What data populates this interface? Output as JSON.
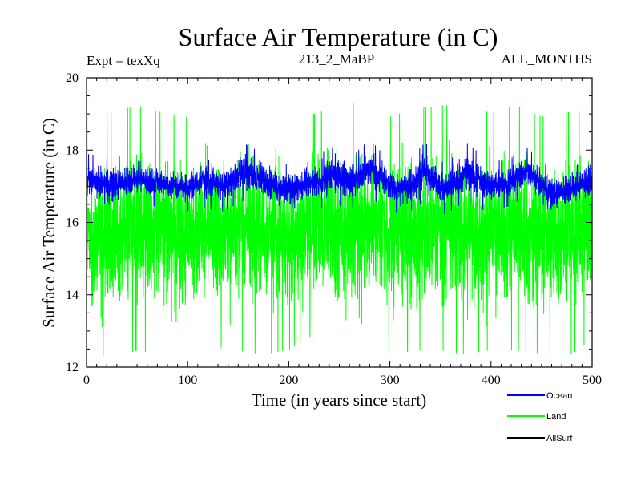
{
  "chart_data": {
    "type": "line",
    "title": "Surface Air Temperature (in C)",
    "subtitle_left": "Expt = texXq",
    "subtitle_center": "213_2_MaBP",
    "subtitle_right": "ALL_MONTHS",
    "xlabel": "Time (in years since start)",
    "ylabel": "Surface Air Temperature (in C)",
    "xlim": [
      0,
      500
    ],
    "ylim": [
      12,
      20
    ],
    "xticks": [
      0,
      100,
      200,
      300,
      400,
      500
    ],
    "yticks": [
      12,
      14,
      16,
      18,
      20
    ],
    "x_tick_labels": [
      "0",
      "100",
      "200",
      "300",
      "400",
      "500"
    ],
    "y_tick_labels": [
      "12",
      "14",
      "16",
      "18",
      "20"
    ],
    "grid": false,
    "legend_position": "bottom-right, below plot",
    "legend": [
      "Ocean",
      "Land",
      "AllSurf"
    ],
    "series": [
      {
        "name": "Land",
        "color": "#00ff00",
        "description": "monthly series, mean about 15.2, seasonal-scale spread roughly 12.3 to 19.4",
        "envelope_x": [
          0,
          25,
          50,
          75,
          100,
          125,
          150,
          175,
          200,
          225,
          250,
          275,
          300,
          325,
          350,
          375,
          400,
          425,
          450,
          475,
          500
        ],
        "envelope_low": [
          12.8,
          12.7,
          12.9,
          12.8,
          12.9,
          13.0,
          12.9,
          12.8,
          12.9,
          13.3,
          13.0,
          12.9,
          12.8,
          12.9,
          12.9,
          12.8,
          12.9,
          12.9,
          12.8,
          12.7,
          13.2
        ],
        "envelope_high": [
          18.5,
          18.6,
          18.8,
          18.6,
          18.5,
          18.6,
          18.9,
          18.8,
          18.5,
          18.6,
          18.8,
          18.9,
          18.5,
          18.7,
          18.8,
          18.8,
          18.6,
          18.8,
          18.5,
          18.6,
          18.7
        ],
        "mean": 15.2
      },
      {
        "name": "Ocean",
        "color": "#0000ff",
        "description": "monthly series with multi-decadal oscillation around 17.2",
        "envelope_x": [
          0,
          25,
          50,
          75,
          100,
          115,
          135,
          155,
          175,
          200,
          220,
          245,
          265,
          280,
          300,
          315,
          335,
          355,
          375,
          395,
          415,
          435,
          460,
          480,
          500
        ],
        "envelope_low": [
          16.5,
          16.4,
          16.6,
          16.5,
          16.4,
          16.5,
          16.4,
          16.7,
          16.5,
          16.3,
          16.4,
          16.6,
          16.5,
          16.8,
          16.4,
          16.3,
          16.7,
          16.3,
          16.7,
          16.4,
          16.5,
          16.8,
          16.2,
          16.3,
          16.5
        ],
        "envelope_high": [
          17.8,
          17.7,
          17.8,
          17.7,
          17.5,
          17.9,
          17.7,
          18.1,
          17.8,
          17.5,
          17.7,
          18.0,
          17.8,
          18.2,
          17.6,
          17.6,
          18.1,
          17.5,
          18.1,
          17.7,
          17.6,
          18.0,
          17.4,
          17.6,
          17.9
        ]
      },
      {
        "name": "AllSurf",
        "color": "#000000",
        "description": "not visibly plotted"
      }
    ]
  }
}
